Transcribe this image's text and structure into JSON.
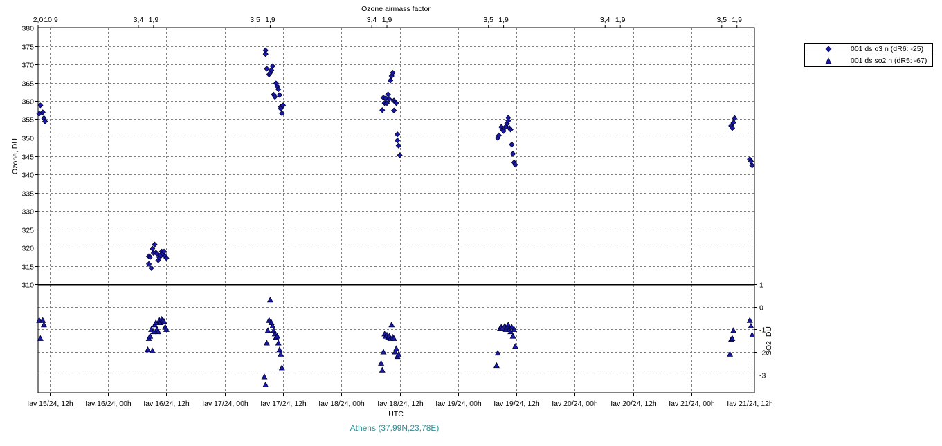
{
  "colors": {
    "marker_fill": "#1a1aa8",
    "marker_stroke": "#000033",
    "caption": "#2a8f96",
    "grid": "#808080"
  },
  "legend": {
    "items": [
      {
        "label": "001 ds o3  n (dR6: -25)",
        "icon": "diamond-marker-icon"
      },
      {
        "label": "001 ds so2 n (dR5: -67)",
        "icon": "triangle-marker-icon"
      }
    ]
  },
  "chart_data": {
    "type": "scatter",
    "caption": "Athens (37,99N,23,78E)",
    "x_axis": {
      "label": "UTC",
      "range": [
        14.9,
        21.04
      ],
      "ticks": [
        {
          "x": 15.0,
          "label": "Iav 15/24, 12h"
        },
        {
          "x": 15.5,
          "label": "Iav 16/24, 00h"
        },
        {
          "x": 16.0,
          "label": "Iav 16/24, 12h"
        },
        {
          "x": 16.5,
          "label": "Iav 17/24, 00h"
        },
        {
          "x": 17.0,
          "label": "Iav 17/24, 12h"
        },
        {
          "x": 17.5,
          "label": "Iav 18/24, 00h"
        },
        {
          "x": 18.0,
          "label": "Iav 18/24, 12h"
        },
        {
          "x": 18.5,
          "label": "Iav 19/24, 00h"
        },
        {
          "x": 19.0,
          "label": "Iav 19/24, 12h"
        },
        {
          "x": 19.5,
          "label": "Iav 20/24, 00h"
        },
        {
          "x": 20.0,
          "label": "Iav 20/24, 12h"
        },
        {
          "x": 20.5,
          "label": "Iav 21/24, 00h"
        },
        {
          "x": 21.0,
          "label": "Iav 21/24, 12h"
        }
      ]
    },
    "top_axis": {
      "label": "Ozone airmass factor",
      "ticks": [
        {
          "x": 14.9,
          "label": "2,0"
        },
        {
          "x": 15.01,
          "label": "10,9"
        },
        {
          "x": 15.76,
          "label": "3,4"
        },
        {
          "x": 15.89,
          "label": "1,9"
        },
        {
          "x": 16.76,
          "label": "3,5"
        },
        {
          "x": 16.89,
          "label": "1,9"
        },
        {
          "x": 17.76,
          "label": "3,4"
        },
        {
          "x": 17.89,
          "label": "1,9"
        },
        {
          "x": 18.76,
          "label": "3,5"
        },
        {
          "x": 18.89,
          "label": "1,9"
        },
        {
          "x": 19.76,
          "label": "3,4"
        },
        {
          "x": 19.89,
          "label": "1,9"
        },
        {
          "x": 20.76,
          "label": "3,5"
        },
        {
          "x": 20.89,
          "label": "1,9"
        }
      ]
    },
    "y_axis_left": {
      "label": "Ozone, DU",
      "range": [
        310,
        380
      ],
      "ticks": [
        "310",
        "315",
        "320",
        "325",
        "330",
        "335",
        "340",
        "345",
        "350",
        "355",
        "360",
        "365",
        "370",
        "375",
        "380"
      ]
    },
    "y_axis_right": {
      "label": "SO2, DU",
      "range": [
        -3.8,
        1
      ],
      "ticks": [
        "1",
        "0",
        "-1",
        "-2",
        "-3"
      ]
    },
    "grid": true,
    "legend_position": "right, outside plot, top",
    "series": [
      {
        "name": "001 ds o3  n (dR6: -25)",
        "marker": "diamond",
        "panel": "top",
        "points": [
          [
            14.91,
            356.5
          ],
          [
            14.92,
            358.8
          ],
          [
            14.94,
            356.9
          ],
          [
            14.95,
            355.3
          ],
          [
            14.96,
            354.4
          ],
          [
            15.85,
            317.6
          ],
          [
            15.85,
            315.5
          ],
          [
            15.86,
            317.4
          ],
          [
            15.87,
            314.4
          ],
          [
            15.88,
            319.7
          ],
          [
            15.89,
            318.5
          ],
          [
            15.9,
            320.8
          ],
          [
            15.91,
            318.6
          ],
          [
            15.92,
            318.3
          ],
          [
            15.93,
            316.5
          ],
          [
            15.94,
            317.3
          ],
          [
            15.95,
            317.9
          ],
          [
            15.96,
            318.9
          ],
          [
            15.97,
            318.3
          ],
          [
            15.98,
            318.9
          ],
          [
            15.99,
            317.6
          ],
          [
            16.0,
            317.1
          ],
          [
            16.85,
            373.8
          ],
          [
            16.85,
            372.8
          ],
          [
            16.86,
            368.8
          ],
          [
            16.88,
            367.2
          ],
          [
            16.89,
            367.7
          ],
          [
            16.9,
            368.4
          ],
          [
            16.91,
            369.5
          ],
          [
            16.92,
            361.7
          ],
          [
            16.93,
            361.1
          ],
          [
            16.94,
            364.8
          ],
          [
            16.95,
            364.0
          ],
          [
            16.96,
            363.2
          ],
          [
            16.97,
            361.6
          ],
          [
            16.98,
            358.4
          ],
          [
            16.98,
            357.9
          ],
          [
            16.99,
            356.6
          ],
          [
            17.0,
            358.8
          ],
          [
            17.85,
            357.5
          ],
          [
            17.86,
            360.9
          ],
          [
            17.87,
            359.4
          ],
          [
            17.88,
            360.7
          ],
          [
            17.89,
            359.4
          ],
          [
            17.9,
            361.8
          ],
          [
            17.91,
            360.5
          ],
          [
            17.92,
            365.6
          ],
          [
            17.93,
            366.8
          ],
          [
            17.94,
            367.7
          ],
          [
            17.95,
            357.4
          ],
          [
            17.95,
            360.1
          ],
          [
            17.96,
            359.7
          ],
          [
            17.97,
            359.4
          ],
          [
            17.98,
            350.9
          ],
          [
            17.98,
            349.2
          ],
          [
            17.99,
            347.8
          ],
          [
            18.0,
            345.2
          ],
          [
            18.84,
            349.9
          ],
          [
            18.85,
            350.6
          ],
          [
            18.87,
            352.9
          ],
          [
            18.88,
            352.2
          ],
          [
            18.89,
            351.8
          ],
          [
            18.9,
            352.7
          ],
          [
            18.91,
            353.0
          ],
          [
            18.92,
            353.8
          ],
          [
            18.93,
            354.6
          ],
          [
            18.93,
            355.4
          ],
          [
            18.94,
            352.6
          ],
          [
            18.95,
            352.2
          ],
          [
            18.96,
            348.1
          ],
          [
            18.97,
            345.6
          ],
          [
            18.98,
            343.2
          ],
          [
            18.99,
            342.6
          ],
          [
            20.84,
            353.2
          ],
          [
            20.85,
            352.6
          ],
          [
            20.86,
            354.1
          ],
          [
            20.87,
            355.3
          ],
          [
            21.0,
            344.1
          ],
          [
            21.01,
            343.5
          ],
          [
            21.02,
            342.4
          ]
        ]
      },
      {
        "name": "001 ds so2 n (dR5: -67)",
        "marker": "triangle",
        "panel": "bottom",
        "points": [
          [
            14.91,
            -0.6
          ],
          [
            14.92,
            -1.4
          ],
          [
            14.94,
            -0.6
          ],
          [
            14.95,
            -0.8
          ],
          [
            15.84,
            -1.9
          ],
          [
            15.85,
            -1.4
          ],
          [
            15.86,
            -1.3
          ],
          [
            15.87,
            -1.0
          ],
          [
            15.88,
            -1.95
          ],
          [
            15.89,
            -1.1
          ],
          [
            15.9,
            -0.8
          ],
          [
            15.91,
            -0.7
          ],
          [
            15.92,
            -1.0
          ],
          [
            15.93,
            -1.1
          ],
          [
            15.94,
            -0.6
          ],
          [
            15.95,
            -0.7
          ],
          [
            15.96,
            -0.55
          ],
          [
            15.97,
            -0.6
          ],
          [
            15.98,
            -0.65
          ],
          [
            15.99,
            -0.9
          ],
          [
            16.0,
            -1.0
          ],
          [
            16.84,
            -3.1
          ],
          [
            16.85,
            -3.45
          ],
          [
            16.86,
            -1.6
          ],
          [
            16.87,
            -1.05
          ],
          [
            16.88,
            -0.6
          ],
          [
            16.89,
            0.3
          ],
          [
            16.9,
            -0.7
          ],
          [
            16.91,
            -0.85
          ],
          [
            16.92,
            -1.05
          ],
          [
            16.93,
            -1.2
          ],
          [
            16.94,
            -1.35
          ],
          [
            16.95,
            -1.3
          ],
          [
            16.96,
            -1.6
          ],
          [
            16.97,
            -1.9
          ],
          [
            16.98,
            -2.1
          ],
          [
            16.99,
            -2.7
          ],
          [
            17.84,
            -2.5
          ],
          [
            17.85,
            -2.8
          ],
          [
            17.86,
            -2.0
          ],
          [
            17.87,
            -1.2
          ],
          [
            17.88,
            -1.3
          ],
          [
            17.89,
            -1.25
          ],
          [
            17.9,
            -1.35
          ],
          [
            17.91,
            -1.3
          ],
          [
            17.92,
            -1.4
          ],
          [
            17.93,
            -0.8
          ],
          [
            17.94,
            -1.35
          ],
          [
            17.95,
            -1.4
          ],
          [
            17.96,
            -2.0
          ],
          [
            17.97,
            -1.85
          ],
          [
            17.98,
            -2.2
          ],
          [
            17.99,
            -2.1
          ],
          [
            18.83,
            -2.6
          ],
          [
            18.84,
            -2.05
          ],
          [
            18.86,
            -0.95
          ],
          [
            18.87,
            -0.9
          ],
          [
            18.88,
            -0.95
          ],
          [
            18.9,
            -0.85
          ],
          [
            18.91,
            -1.0
          ],
          [
            18.92,
            -0.9
          ],
          [
            18.93,
            -0.8
          ],
          [
            18.94,
            -1.0
          ],
          [
            18.95,
            -1.1
          ],
          [
            18.96,
            -0.9
          ],
          [
            18.97,
            -1.3
          ],
          [
            18.98,
            -1.0
          ],
          [
            18.99,
            -1.75
          ],
          [
            20.83,
            -2.1
          ],
          [
            20.84,
            -1.45
          ],
          [
            20.85,
            -1.4
          ],
          [
            20.86,
            -1.05
          ],
          [
            21.0,
            -0.6
          ],
          [
            21.01,
            -0.85
          ],
          [
            21.02,
            -1.25
          ]
        ]
      }
    ]
  }
}
